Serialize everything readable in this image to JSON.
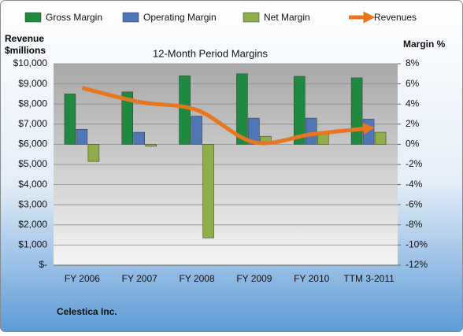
{
  "chart_data": {
    "type": "bar-line",
    "title": "12-Month Period Margins",
    "y_label": "Revenue $millions",
    "y2_label": "Margin %",
    "footer": "Celestica Inc.",
    "categories": [
      "FY 2006",
      "FY 2007",
      "FY 2008",
      "FY 2009",
      "FY 2010",
      "TTM 3-2011"
    ],
    "series": [
      {
        "name": "Gross Margin",
        "color": "#1f8a3f",
        "type": "bar",
        "axis": "y2",
        "values": [
          5.0,
          5.2,
          6.8,
          7.0,
          6.75,
          6.6
        ]
      },
      {
        "name": "Operating Margin",
        "color": "#4f77b8",
        "type": "bar",
        "axis": "y2",
        "values": [
          1.5,
          1.2,
          2.8,
          2.6,
          2.6,
          2.5
        ]
      },
      {
        "name": "Net Margin",
        "color": "#8fad4a",
        "type": "bar",
        "axis": "y2",
        "values": [
          -1.7,
          -0.2,
          -9.3,
          0.8,
          1.0,
          1.2
        ]
      },
      {
        "name": "Revenues",
        "color": "#e8761e",
        "type": "line",
        "values": [
          8800,
          8100,
          7700,
          6100,
          6500,
          6800
        ]
      }
    ],
    "ylim": [
      0,
      10000
    ],
    "yticks": [
      {
        "value": 0,
        "label": "$-"
      },
      {
        "value": 1000,
        "label": "$1,000"
      },
      {
        "value": 2000,
        "label": "$2,000"
      },
      {
        "value": 3000,
        "label": "$3,000"
      },
      {
        "value": 4000,
        "label": "$4,000"
      },
      {
        "value": 5000,
        "label": "$5,000"
      },
      {
        "value": 6000,
        "label": "$6,000"
      },
      {
        "value": 7000,
        "label": "$7,000"
      },
      {
        "value": 8000,
        "label": "$8,000"
      },
      {
        "value": 9000,
        "label": "$9,000"
      },
      {
        "value": 10000,
        "label": "$10,000"
      }
    ],
    "y2lim": [
      -12,
      8
    ],
    "y2ticks": [
      {
        "value": -12,
        "label": "-12%"
      },
      {
        "value": -10,
        "label": "-10%"
      },
      {
        "value": -8,
        "label": "-8%"
      },
      {
        "value": -6,
        "label": "-6%"
      },
      {
        "value": -4,
        "label": "-4%"
      },
      {
        "value": -2,
        "label": "-2%"
      },
      {
        "value": 0,
        "label": "0%"
      },
      {
        "value": 2,
        "label": "2%"
      },
      {
        "value": 4,
        "label": "4%"
      },
      {
        "value": 6,
        "label": "6%"
      },
      {
        "value": 8,
        "label": "8%"
      }
    ],
    "grid": true
  }
}
